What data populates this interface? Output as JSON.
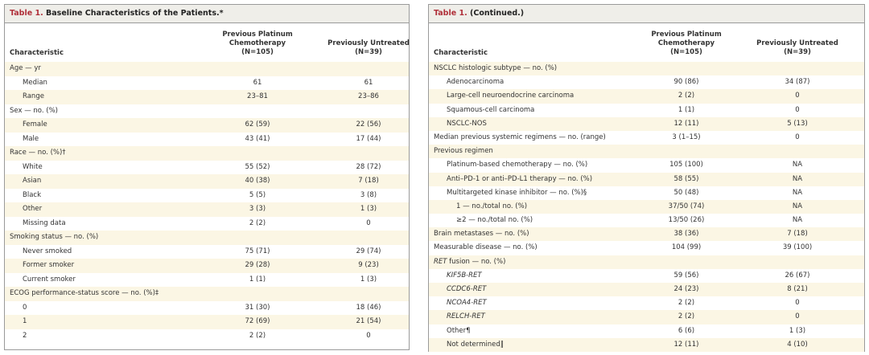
{
  "left": {
    "title_num": "Table 1.",
    "title": " Baseline Characteristics of the Patients.*",
    "headers": [
      "Characteristic",
      "Previous Platinum\nChemotherapy\n(N=105)",
      "Previously Untreated\n(N=39)"
    ],
    "rows": [
      {
        "label": "Age — yr",
        "level": 0,
        "a": "",
        "b": ""
      },
      {
        "label": "Median",
        "level": 1,
        "a": "61",
        "b": "61"
      },
      {
        "label": "Range",
        "level": 1,
        "a": "23–81",
        "b": "23–86"
      },
      {
        "label": "Sex — no. (%)",
        "level": 0,
        "a": "",
        "b": ""
      },
      {
        "label": "Female",
        "level": 1,
        "a": "62 (59)",
        "b": "22 (56)"
      },
      {
        "label": "Male",
        "level": 1,
        "a": "43 (41)",
        "b": "17 (44)"
      },
      {
        "label": "Race — no. (%)†",
        "level": 0,
        "a": "",
        "b": ""
      },
      {
        "label": "White",
        "level": 1,
        "a": "55 (52)",
        "b": "28 (72)"
      },
      {
        "label": "Asian",
        "level": 1,
        "a": "40 (38)",
        "b": "7 (18)"
      },
      {
        "label": "Black",
        "level": 1,
        "a": "5 (5)",
        "b": "3 (8)"
      },
      {
        "label": "Other",
        "level": 1,
        "a": "3 (3)",
        "b": "1 (3)"
      },
      {
        "label": "Missing data",
        "level": 1,
        "a": "2 (2)",
        "b": "0"
      },
      {
        "label": "Smoking status — no. (%)",
        "level": 0,
        "a": "",
        "b": ""
      },
      {
        "label": "Never smoked",
        "level": 1,
        "a": "75 (71)",
        "b": "29 (74)"
      },
      {
        "label": "Former smoker",
        "level": 1,
        "a": "29 (28)",
        "b": "9 (23)"
      },
      {
        "label": "Current smoker",
        "level": 1,
        "a": "1 (1)",
        "b": "1 (3)"
      },
      {
        "label": "ECOG performance-status score — no. (%)‡",
        "level": 0,
        "a": "",
        "b": ""
      },
      {
        "label": "0",
        "level": 1,
        "a": "31 (30)",
        "b": "18 (46)"
      },
      {
        "label": "1",
        "level": 1,
        "a": "72 (69)",
        "b": "21 (54)"
      },
      {
        "label": "2",
        "level": 1,
        "a": "2 (2)",
        "b": "0"
      }
    ]
  },
  "right": {
    "title_num": "Table 1.",
    "title": " (Continued.)",
    "headers": [
      "Characteristic",
      "Previous Platinum\nChemotherapy\n(N=105)",
      "Previously Untreated\n(N=39)"
    ],
    "rows": [
      {
        "label": "NSCLC histologic subtype — no. (%)",
        "level": 0,
        "a": "",
        "b": ""
      },
      {
        "label": "Adenocarcinoma",
        "level": 1,
        "a": "90 (86)",
        "b": "34 (87)"
      },
      {
        "label": "Large-cell neuroendocrine carcinoma",
        "level": 1,
        "a": "2 (2)",
        "b": "0"
      },
      {
        "label": "Squamous-cell carcinoma",
        "level": 1,
        "a": "1 (1)",
        "b": "0"
      },
      {
        "label": "NSCLC-NOS",
        "level": 1,
        "a": "12 (11)",
        "b": "5 (13)"
      },
      {
        "label": "Median previous systemic regimens — no. (range)",
        "level": 0,
        "a": "3 (1–15)",
        "b": "0"
      },
      {
        "label": "Previous regimen",
        "level": 0,
        "a": "",
        "b": ""
      },
      {
        "label": "Platinum-based chemotherapy — no. (%)",
        "level": 1,
        "a": "105 (100)",
        "b": "NA"
      },
      {
        "label": "Anti–PD-1 or anti–PD-L1 therapy — no. (%)",
        "level": 1,
        "a": "58 (55)",
        "b": "NA"
      },
      {
        "label": "Multitargeted kinase inhibitor — no. (%)§",
        "level": 1,
        "a": "50 (48)",
        "b": "NA"
      },
      {
        "label": "1 — no./total no. (%)",
        "level": 2,
        "a": "37/50 (74)",
        "b": "NA"
      },
      {
        "label": "≥2 — no./total no. (%)",
        "level": 2,
        "a": "13/50 (26)",
        "b": "NA"
      },
      {
        "label": "Brain metastases — no. (%)",
        "level": 0,
        "a": "38 (36)",
        "b": "7 (18)"
      },
      {
        "label": "Measurable disease — no. (%)",
        "level": 0,
        "a": "104 (99)",
        "b": "39 (100)"
      },
      {
        "label": "RET fusion — no. (%)",
        "level": 0,
        "a": "",
        "b": "",
        "italic_prefix": "RET"
      },
      {
        "label": "KIF5B-RET",
        "level": 1,
        "a": "59 (56)",
        "b": "26 (67)",
        "italic": true
      },
      {
        "label": "CCDC6-RET",
        "level": 1,
        "a": "24 (23)",
        "b": "8 (21)",
        "italic": true
      },
      {
        "label": "NCOA4-RET",
        "level": 1,
        "a": "2 (2)",
        "b": "0",
        "italic": true
      },
      {
        "label": "RELCH-RET",
        "level": 1,
        "a": "2 (2)",
        "b": "0",
        "italic": true
      },
      {
        "label": "Other¶",
        "level": 1,
        "a": "6 (6)",
        "b": "1 (3)"
      },
      {
        "label": "Not determined‖",
        "level": 1,
        "a": "12 (11)",
        "b": "4 (10)"
      }
    ]
  }
}
